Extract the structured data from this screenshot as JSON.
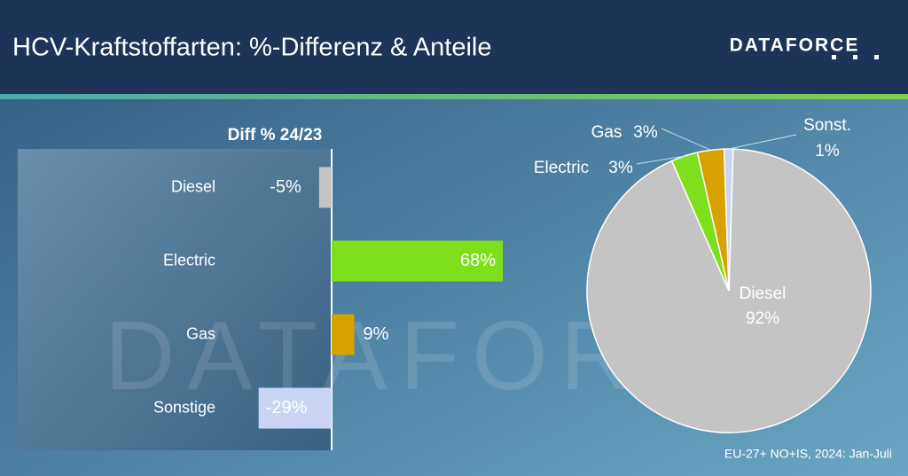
{
  "header": {
    "title": "HCV-Kraftstoffarten: %-Differenz & Anteile",
    "logo": "DATAFORCE"
  },
  "footer": {
    "note": "EU-27+ NO+IS, 2024: Jan-Juli"
  },
  "chart_data": [
    {
      "type": "bar",
      "orientation": "horizontal",
      "title": "Diff % 24/23",
      "categories": [
        "Diesel",
        "Electric",
        "Gas",
        "Sonstige"
      ],
      "values": [
        -5,
        68,
        9,
        -29
      ],
      "value_labels": [
        "-5%",
        "68%",
        "9%",
        "-29%"
      ],
      "colors": [
        "#c4c4c4",
        "#7ee01c",
        "#d9a100",
        "#c9d5f2"
      ]
    },
    {
      "type": "pie",
      "categories": [
        "Diesel",
        "Electric",
        "Gas",
        "Sonst."
      ],
      "values": [
        92,
        3,
        3,
        1
      ],
      "value_labels": [
        "92%",
        "3%",
        "3%",
        "1%"
      ],
      "colors": [
        "#c4c4c4",
        "#7ee01c",
        "#d9a100",
        "#c9d5f2"
      ]
    }
  ]
}
